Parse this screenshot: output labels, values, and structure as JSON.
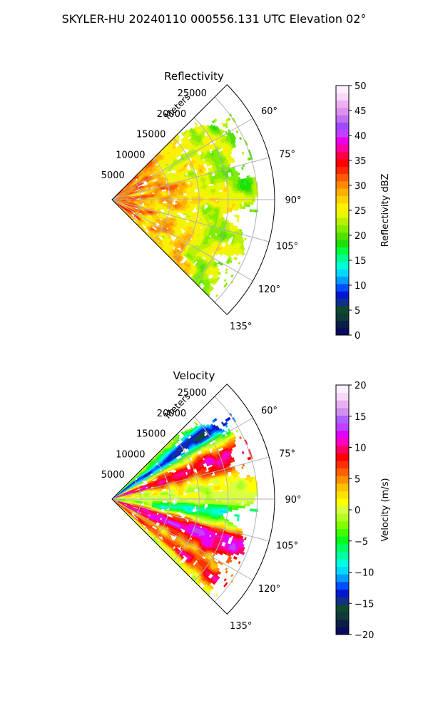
{
  "figure": {
    "title": "SKYLER-HU  20240110  000556.131 UTC Elevation 02°"
  },
  "chart_data": [
    {
      "type": "heatmap",
      "title": "Reflectivity",
      "projection": "polar sector",
      "range_axis_label": "Meters",
      "range_ticks": [
        5000,
        10000,
        15000,
        20000,
        25000
      ],
      "range_max": 28000,
      "azimuth_ticks": [
        "60°",
        "75°",
        "90°",
        "105°",
        "120°",
        "135°"
      ],
      "azimuth_range": [
        45,
        135
      ],
      "grid": true,
      "colorbar": {
        "label": "Reflectivity dBZ",
        "min": 0,
        "max": 50,
        "ticks": [
          0,
          5,
          10,
          15,
          20,
          25,
          30,
          35,
          40,
          45,
          50
        ]
      },
      "field_description": "mostly 20–30 dBZ returns filling the sector out to ~25 km, highest (30–35 dBZ) near radar"
    },
    {
      "type": "heatmap",
      "title": "Velocity",
      "projection": "polar sector",
      "range_axis_label": "Meters",
      "range_ticks": [
        5000,
        10000,
        15000,
        20000,
        25000
      ],
      "range_max": 28000,
      "azimuth_ticks": [
        "60°",
        "75°",
        "90°",
        "105°",
        "120°",
        "135°"
      ],
      "azimuth_range": [
        45,
        135
      ],
      "grid": true,
      "colorbar": {
        "label": "Velocity (m/s)",
        "min": -20,
        "max": 20,
        "ticks": [
          -20,
          -15,
          -10,
          -5,
          0,
          5,
          10,
          15,
          20
        ]
      },
      "field_description": "outbound (red/magenta) bands near 70° and 110°, inbound (cyan/green) near 55° and 100°, near-zero (yellow) along 90°"
    }
  ],
  "colormaps": {
    "reflectivity": [
      "#0a0a5e",
      "#0b1e46",
      "#0f3a3a",
      "#0e4a2e",
      "#10308a",
      "#0018d0",
      "#0050ff",
      "#009cff",
      "#00d8ff",
      "#00ffd8",
      "#00ff90",
      "#00ff40",
      "#1ee000",
      "#50e000",
      "#80ec00",
      "#b8f000",
      "#e8f800",
      "#ffef00",
      "#ffd200",
      "#ffb000",
      "#ff8a00",
      "#ff5a00",
      "#ff2800",
      "#ff0000",
      "#ff0044",
      "#ff00a0",
      "#e800e8",
      "#c040ff",
      "#a048ff",
      "#c070f0",
      "#e090f0",
      "#f0b0f0",
      "#f8d8f8",
      "#fff0ff"
    ],
    "velocity": [
      "#0a0a5e",
      "#0b1e46",
      "#0f3a3a",
      "#0e4a2e",
      "#10308a",
      "#0018d0",
      "#0050ff",
      "#009cff",
      "#00d8ff",
      "#00ffe0",
      "#00ffa0",
      "#00ff60",
      "#00ff20",
      "#40ff00",
      "#80ff00",
      "#b0ff20",
      "#d8ff40",
      "#ffff00",
      "#ffe000",
      "#ffc000",
      "#ff9000",
      "#ff6000",
      "#ff3000",
      "#ff0000",
      "#ff0060",
      "#ff00c0",
      "#e000ff",
      "#c040ff",
      "#b060ff",
      "#d090f0",
      "#e8b0f0",
      "#f8d8f8",
      "#fff0ff"
    ]
  }
}
